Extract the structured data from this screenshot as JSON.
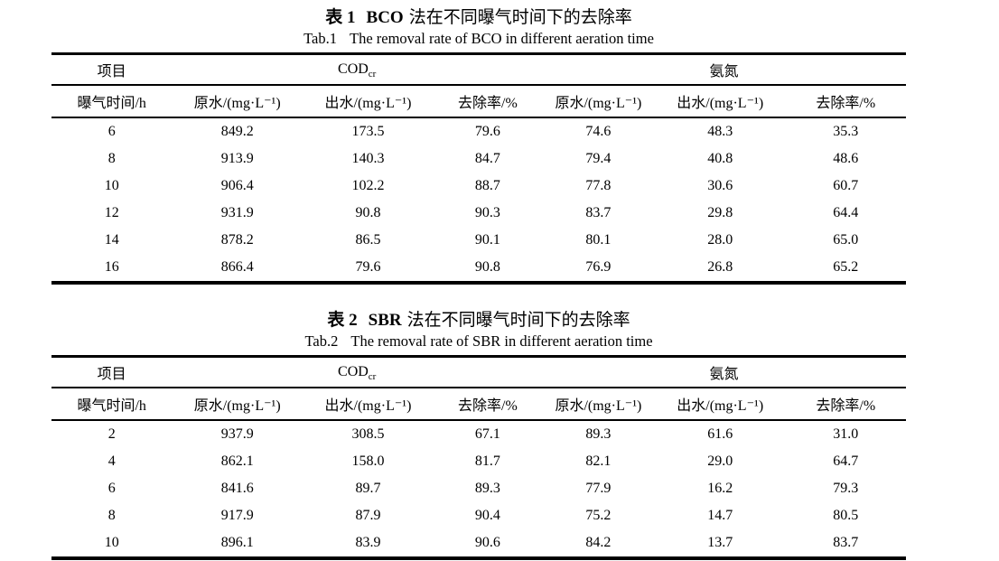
{
  "page": {
    "background_color": "#ffffff",
    "text_color": "#000000",
    "rule_color": "#000000"
  },
  "headers": {
    "item_label": "项目",
    "cod_base": "COD",
    "cod_sub": "cr",
    "ammonia_label": "氨氮",
    "columns": [
      "曝气时间/h",
      "原水/(mg·L⁻¹)",
      "出水/(mg·L⁻¹)",
      "去除率/%",
      "原水/(mg·L⁻¹)",
      "出水/(mg·L⁻¹)",
      "去除率/%"
    ]
  },
  "tables": [
    {
      "caption_zh_label": "表 1",
      "caption_zh_method": "BCO",
      "caption_zh_rest": "法在不同曝气时间下的去除率",
      "caption_en_label": "Tab.1",
      "caption_en_text": "The removal rate of BCO in different aeration time",
      "rows": [
        [
          "6",
          "849.2",
          "173.5",
          "79.6",
          "74.6",
          "48.3",
          "35.3"
        ],
        [
          "8",
          "913.9",
          "140.3",
          "84.7",
          "79.4",
          "40.8",
          "48.6"
        ],
        [
          "10",
          "906.4",
          "102.2",
          "88.7",
          "77.8",
          "30.6",
          "60.7"
        ],
        [
          "12",
          "931.9",
          "90.8",
          "90.3",
          "83.7",
          "29.8",
          "64.4"
        ],
        [
          "14",
          "878.2",
          "86.5",
          "90.1",
          "80.1",
          "28.0",
          "65.0"
        ],
        [
          "16",
          "866.4",
          "79.6",
          "90.8",
          "76.9",
          "26.8",
          "65.2"
        ]
      ]
    },
    {
      "caption_zh_label": "表 2",
      "caption_zh_method": "SBR",
      "caption_zh_rest": "法在不同曝气时间下的去除率",
      "caption_en_label": "Tab.2",
      "caption_en_text": "The removal rate of SBR in different aeration time",
      "rows": [
        [
          "2",
          "937.9",
          "308.5",
          "67.1",
          "89.3",
          "61.6",
          "31.0"
        ],
        [
          "4",
          "862.1",
          "158.0",
          "81.7",
          "82.1",
          "29.0",
          "64.7"
        ],
        [
          "6",
          "841.6",
          "89.7",
          "89.3",
          "77.9",
          "16.2",
          "79.3"
        ],
        [
          "8",
          "917.9",
          "87.9",
          "90.4",
          "75.2",
          "14.7",
          "80.5"
        ],
        [
          "10",
          "896.1",
          "83.9",
          "90.6",
          "84.2",
          "13.7",
          "83.7"
        ]
      ]
    }
  ]
}
